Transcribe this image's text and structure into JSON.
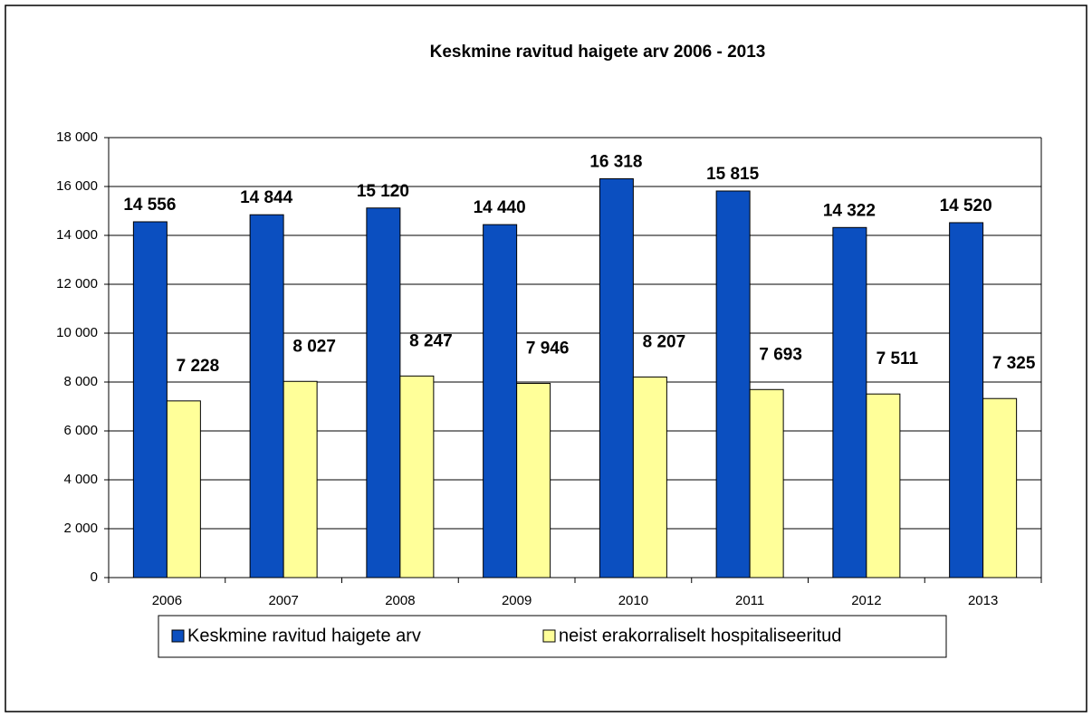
{
  "chart_data": {
    "type": "bar",
    "title": "Keskmine ravitud haigete arv 2006 - 2013",
    "categories": [
      "2006",
      "2007",
      "2008",
      "2009",
      "2010",
      "2011",
      "2012",
      "2013"
    ],
    "series": [
      {
        "name": "Keskmine ravitud haigete arv",
        "color": "#0b4fc0",
        "values": [
          14556,
          14844,
          15120,
          14440,
          16318,
          15815,
          14322,
          14520
        ],
        "value_labels": [
          "14 556",
          "14 844",
          "15 120",
          "14 440",
          "16 318",
          "15 815",
          "14 322",
          "14 520"
        ]
      },
      {
        "name": "neist erakorraliselt hospitaliseeritud",
        "color": "#ffff99",
        "values": [
          7228,
          8027,
          8247,
          7946,
          8207,
          7693,
          7511,
          7325
        ],
        "value_labels": [
          "7 228",
          "8 027",
          "8 247",
          "7 946",
          "8 207",
          "7 693",
          "7 511",
          "7 325"
        ]
      }
    ],
    "ylim": [
      0,
      18000
    ],
    "yticks": [
      0,
      {
        "value": 2000,
        "label": "2 000"
      },
      {
        "value": 4000,
        "label": "4 000"
      },
      {
        "value": 6000,
        "label": "6 000"
      },
      {
        "value": 8000,
        "label": "8 000"
      },
      {
        "value": 10000,
        "label": "10 000"
      },
      {
        "value": 12000,
        "label": "12 000"
      },
      {
        "value": 14000,
        "label": "14 000"
      },
      {
        "value": 16000,
        "label": "16 000"
      },
      {
        "value": 18000,
        "label": "18 000"
      }
    ],
    "grid": true,
    "legend": "bottom"
  }
}
